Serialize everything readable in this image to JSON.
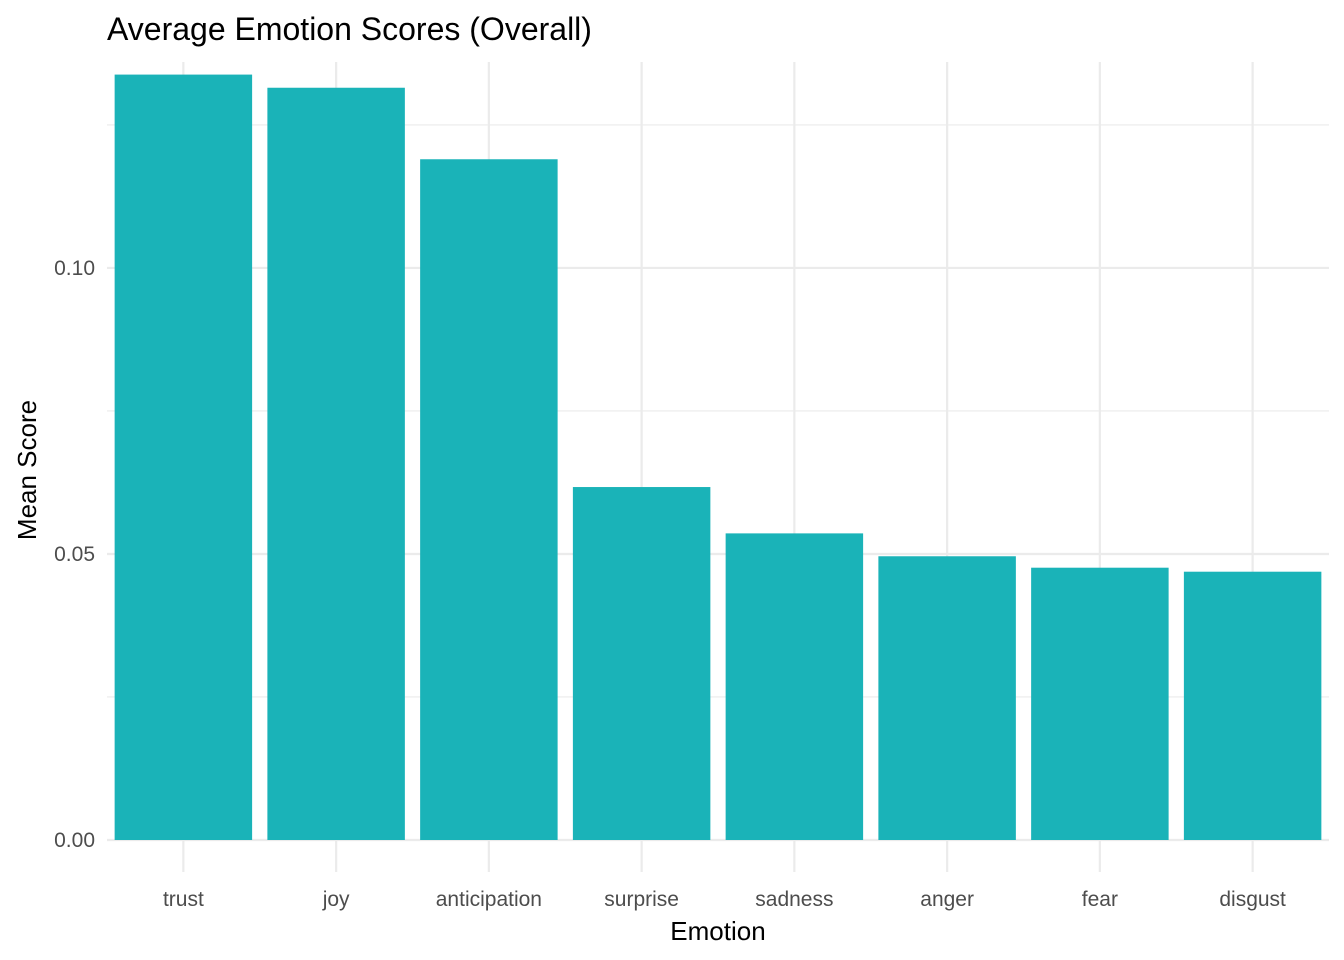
{
  "chart_data": {
    "type": "bar",
    "title": "Average Emotion Scores (Overall)",
    "xlabel": "Emotion",
    "ylabel": "Mean Score",
    "categories": [
      "trust",
      "joy",
      "anticipation",
      "surprise",
      "sadness",
      "anger",
      "fear",
      "disgust"
    ],
    "values": [
      0.1338,
      0.1315,
      0.119,
      0.0617,
      0.0536,
      0.0496,
      0.0476,
      0.0469
    ],
    "ylim": [
      0,
      0.136
    ],
    "yticks": [
      0.0,
      0.05,
      0.1
    ],
    "ytick_labels": [
      "0.00",
      "0.05",
      "0.10"
    ],
    "grid": true,
    "bar_color": "#1AB3B8",
    "legend": "none"
  }
}
